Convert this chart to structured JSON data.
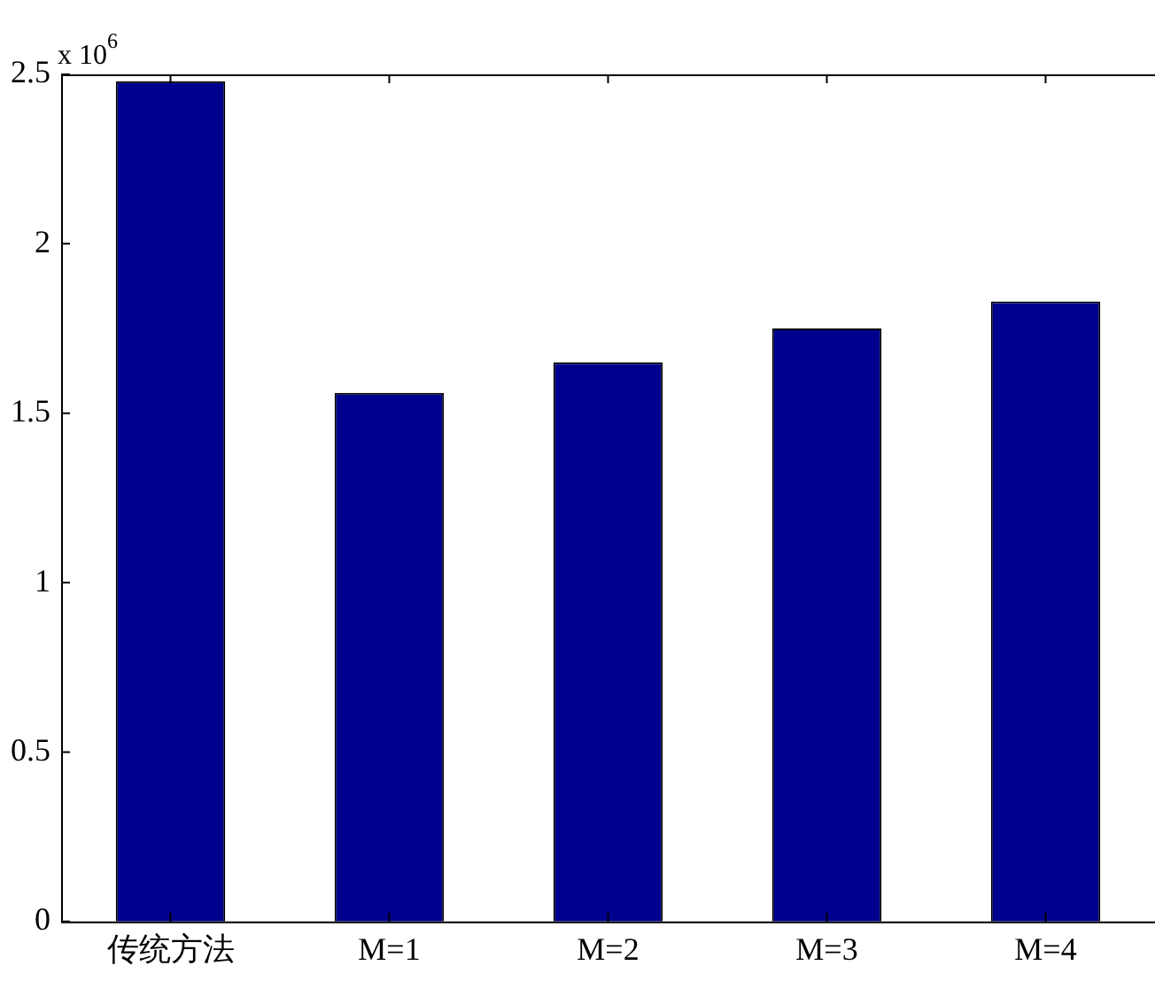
{
  "chart_data": {
    "type": "bar",
    "categories": [
      "传统方法",
      "M=1",
      "M=2",
      "M=3",
      "M=4"
    ],
    "values": [
      2.48,
      1.56,
      1.65,
      1.75,
      1.83
    ],
    "color": "#00008f",
    "ylim": [
      0,
      2.5
    ],
    "yticks": [
      0,
      0.5,
      1,
      1.5,
      2,
      2.5
    ],
    "grid": false,
    "legend": false,
    "annotations": [
      "x 10$^{6}$"
    ]
  }
}
